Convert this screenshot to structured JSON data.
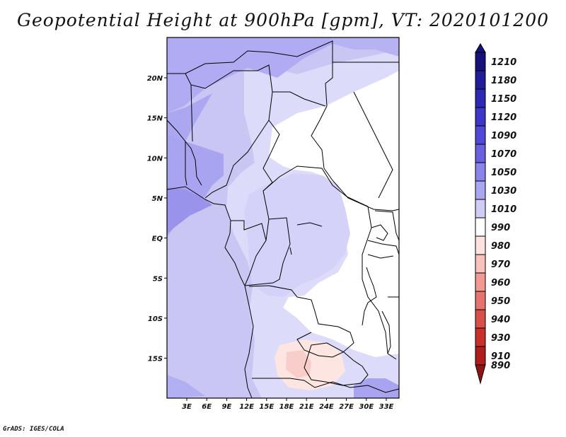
{
  "title": "Geopotential Height at 900hPa [gpm], VT: 2020101200",
  "credit": "GrADS: IGES/COLA",
  "chart_data": {
    "type": "heatmap",
    "variable": "Geopotential Height",
    "level": "900hPa",
    "units": "gpm",
    "valid_time": "2020101200",
    "lat_ticks": [
      "20N",
      "15N",
      "10N",
      "5N",
      "EQ",
      "5S",
      "10S",
      "15S"
    ],
    "lon_ticks": [
      "3E",
      "6E",
      "9E",
      "12E",
      "15E",
      "18E",
      "21E",
      "24E",
      "27E",
      "30E",
      "33E"
    ],
    "colorbar": {
      "levels": [
        "1210",
        "1180",
        "1150",
        "1120",
        "1090",
        "1070",
        "1050",
        "1030",
        "1010",
        "990",
        "980",
        "970",
        "960",
        "950",
        "940",
        "930",
        "910",
        "890"
      ],
      "colors": [
        "#16127a",
        "#221c9a",
        "#2e28b6",
        "#3d36c8",
        "#5048d6",
        "#6860e0",
        "#8a83ea",
        "#aaa6f2",
        "#cfcdf8",
        "#ffffff",
        "#fde2df",
        "#f8c1bc",
        "#f19a94",
        "#e6736d",
        "#d94f4a",
        "#c9302c",
        "#b01d1d",
        "#8f1414"
      ]
    }
  },
  "colors": {
    "frame": "#000000",
    "background": "#ffffff"
  }
}
